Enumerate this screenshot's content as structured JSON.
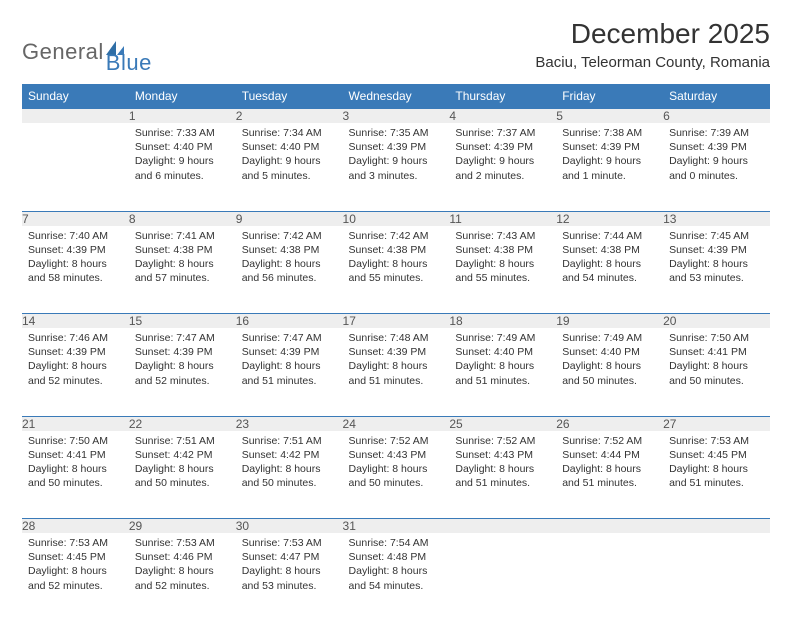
{
  "logo": {
    "part1": "General",
    "part2": "Blue"
  },
  "title": "December 2025",
  "location": "Baciu, Teleorman County, Romania",
  "colors": {
    "brand_blue": "#3a7ab8",
    "header_bg": "#3a7ab8",
    "header_fg": "#ffffff",
    "daynum_bg": "#eeeeee",
    "text": "#333333",
    "logo_grey": "#666666"
  },
  "typography": {
    "title_fontsize": 28,
    "location_fontsize": 15,
    "header_fontsize": 12,
    "daynum_fontsize": 12,
    "body_fontsize": 10.5
  },
  "days_of_week": [
    "Sunday",
    "Monday",
    "Tuesday",
    "Wednesday",
    "Thursday",
    "Friday",
    "Saturday"
  ],
  "weeks": [
    [
      null,
      {
        "n": "1",
        "sunrise": "Sunrise: 7:33 AM",
        "sunset": "Sunset: 4:40 PM",
        "daylight": "Daylight: 9 hours and 6 minutes."
      },
      {
        "n": "2",
        "sunrise": "Sunrise: 7:34 AM",
        "sunset": "Sunset: 4:40 PM",
        "daylight": "Daylight: 9 hours and 5 minutes."
      },
      {
        "n": "3",
        "sunrise": "Sunrise: 7:35 AM",
        "sunset": "Sunset: 4:39 PM",
        "daylight": "Daylight: 9 hours and 3 minutes."
      },
      {
        "n": "4",
        "sunrise": "Sunrise: 7:37 AM",
        "sunset": "Sunset: 4:39 PM",
        "daylight": "Daylight: 9 hours and 2 minutes."
      },
      {
        "n": "5",
        "sunrise": "Sunrise: 7:38 AM",
        "sunset": "Sunset: 4:39 PM",
        "daylight": "Daylight: 9 hours and 1 minute."
      },
      {
        "n": "6",
        "sunrise": "Sunrise: 7:39 AM",
        "sunset": "Sunset: 4:39 PM",
        "daylight": "Daylight: 9 hours and 0 minutes."
      }
    ],
    [
      {
        "n": "7",
        "sunrise": "Sunrise: 7:40 AM",
        "sunset": "Sunset: 4:39 PM",
        "daylight": "Daylight: 8 hours and 58 minutes."
      },
      {
        "n": "8",
        "sunrise": "Sunrise: 7:41 AM",
        "sunset": "Sunset: 4:38 PM",
        "daylight": "Daylight: 8 hours and 57 minutes."
      },
      {
        "n": "9",
        "sunrise": "Sunrise: 7:42 AM",
        "sunset": "Sunset: 4:38 PM",
        "daylight": "Daylight: 8 hours and 56 minutes."
      },
      {
        "n": "10",
        "sunrise": "Sunrise: 7:42 AM",
        "sunset": "Sunset: 4:38 PM",
        "daylight": "Daylight: 8 hours and 55 minutes."
      },
      {
        "n": "11",
        "sunrise": "Sunrise: 7:43 AM",
        "sunset": "Sunset: 4:38 PM",
        "daylight": "Daylight: 8 hours and 55 minutes."
      },
      {
        "n": "12",
        "sunrise": "Sunrise: 7:44 AM",
        "sunset": "Sunset: 4:38 PM",
        "daylight": "Daylight: 8 hours and 54 minutes."
      },
      {
        "n": "13",
        "sunrise": "Sunrise: 7:45 AM",
        "sunset": "Sunset: 4:39 PM",
        "daylight": "Daylight: 8 hours and 53 minutes."
      }
    ],
    [
      {
        "n": "14",
        "sunrise": "Sunrise: 7:46 AM",
        "sunset": "Sunset: 4:39 PM",
        "daylight": "Daylight: 8 hours and 52 minutes."
      },
      {
        "n": "15",
        "sunrise": "Sunrise: 7:47 AM",
        "sunset": "Sunset: 4:39 PM",
        "daylight": "Daylight: 8 hours and 52 minutes."
      },
      {
        "n": "16",
        "sunrise": "Sunrise: 7:47 AM",
        "sunset": "Sunset: 4:39 PM",
        "daylight": "Daylight: 8 hours and 51 minutes."
      },
      {
        "n": "17",
        "sunrise": "Sunrise: 7:48 AM",
        "sunset": "Sunset: 4:39 PM",
        "daylight": "Daylight: 8 hours and 51 minutes."
      },
      {
        "n": "18",
        "sunrise": "Sunrise: 7:49 AM",
        "sunset": "Sunset: 4:40 PM",
        "daylight": "Daylight: 8 hours and 51 minutes."
      },
      {
        "n": "19",
        "sunrise": "Sunrise: 7:49 AM",
        "sunset": "Sunset: 4:40 PM",
        "daylight": "Daylight: 8 hours and 50 minutes."
      },
      {
        "n": "20",
        "sunrise": "Sunrise: 7:50 AM",
        "sunset": "Sunset: 4:41 PM",
        "daylight": "Daylight: 8 hours and 50 minutes."
      }
    ],
    [
      {
        "n": "21",
        "sunrise": "Sunrise: 7:50 AM",
        "sunset": "Sunset: 4:41 PM",
        "daylight": "Daylight: 8 hours and 50 minutes."
      },
      {
        "n": "22",
        "sunrise": "Sunrise: 7:51 AM",
        "sunset": "Sunset: 4:42 PM",
        "daylight": "Daylight: 8 hours and 50 minutes."
      },
      {
        "n": "23",
        "sunrise": "Sunrise: 7:51 AM",
        "sunset": "Sunset: 4:42 PM",
        "daylight": "Daylight: 8 hours and 50 minutes."
      },
      {
        "n": "24",
        "sunrise": "Sunrise: 7:52 AM",
        "sunset": "Sunset: 4:43 PM",
        "daylight": "Daylight: 8 hours and 50 minutes."
      },
      {
        "n": "25",
        "sunrise": "Sunrise: 7:52 AM",
        "sunset": "Sunset: 4:43 PM",
        "daylight": "Daylight: 8 hours and 51 minutes."
      },
      {
        "n": "26",
        "sunrise": "Sunrise: 7:52 AM",
        "sunset": "Sunset: 4:44 PM",
        "daylight": "Daylight: 8 hours and 51 minutes."
      },
      {
        "n": "27",
        "sunrise": "Sunrise: 7:53 AM",
        "sunset": "Sunset: 4:45 PM",
        "daylight": "Daylight: 8 hours and 51 minutes."
      }
    ],
    [
      {
        "n": "28",
        "sunrise": "Sunrise: 7:53 AM",
        "sunset": "Sunset: 4:45 PM",
        "daylight": "Daylight: 8 hours and 52 minutes."
      },
      {
        "n": "29",
        "sunrise": "Sunrise: 7:53 AM",
        "sunset": "Sunset: 4:46 PM",
        "daylight": "Daylight: 8 hours and 52 minutes."
      },
      {
        "n": "30",
        "sunrise": "Sunrise: 7:53 AM",
        "sunset": "Sunset: 4:47 PM",
        "daylight": "Daylight: 8 hours and 53 minutes."
      },
      {
        "n": "31",
        "sunrise": "Sunrise: 7:54 AM",
        "sunset": "Sunset: 4:48 PM",
        "daylight": "Daylight: 8 hours and 54 minutes."
      },
      null,
      null,
      null
    ]
  ]
}
